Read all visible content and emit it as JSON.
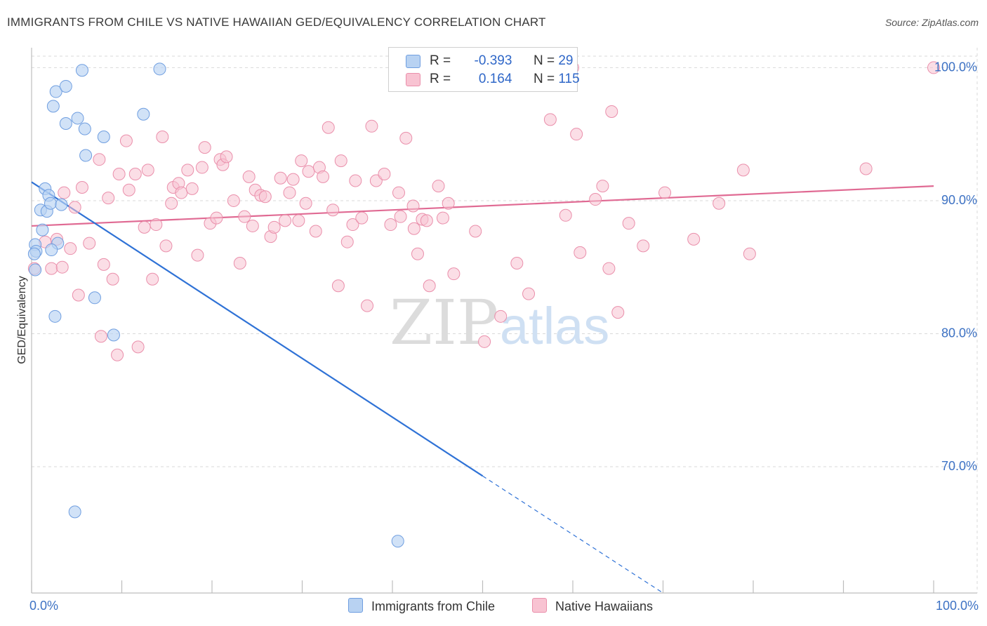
{
  "title": "IMMIGRANTS FROM CHILE VS NATIVE HAWAIIAN GED/EQUIVALENCY CORRELATION CHART",
  "source": "Source: ZipAtlas.com",
  "watermark": {
    "zip": "ZIP",
    "atlas": "atlas"
  },
  "colors": {
    "blue_fill": "#b8d2f2",
    "blue_stroke": "#6f9ee0",
    "blue_line": "#2f72d6",
    "pink_fill": "#f8c3d2",
    "pink_stroke": "#ea8fab",
    "pink_line": "#e06a93",
    "axis_label": "#3d72c4",
    "grid": "#d9d9d9"
  },
  "legend": {
    "rows": [
      {
        "r_label": "R =",
        "r_value": "-0.393",
        "n_label": "N =",
        "n_value": "29"
      },
      {
        "r_label": "R =",
        "r_value": "0.164",
        "n_label": "N =",
        "n_value": "115"
      }
    ]
  },
  "chart_data": {
    "type": "scatter",
    "xlabel": "",
    "ylabel": "GED/Equivalency",
    "xlim": [
      0,
      100
    ],
    "ylim": [
      60.5,
      101.5
    ],
    "x_tick_labels": [
      "0.0%",
      "100.0%"
    ],
    "y_ticks": [
      70,
      80,
      90,
      100
    ],
    "y_tick_labels": [
      "70.0%",
      "80.0%",
      "90.0%",
      "100.0%"
    ],
    "series": [
      {
        "name": "Immigrants from Chile",
        "color": "blue",
        "trend": {
          "x0": 0,
          "y0": 91.4,
          "x1": 50,
          "y1": 69.3,
          "dashed_to_x": 70,
          "dashed_to_y": 60.5
        },
        "points": [
          [
            0.4,
            86.7
          ],
          [
            0.5,
            86.2
          ],
          [
            0.4,
            84.8
          ],
          [
            0.3,
            86.0
          ],
          [
            1.2,
            87.8
          ],
          [
            1.0,
            89.3
          ],
          [
            1.7,
            89.2
          ],
          [
            1.5,
            90.9
          ],
          [
            1.9,
            90.4
          ],
          [
            2.1,
            89.8
          ],
          [
            3.3,
            89.7
          ],
          [
            2.9,
            86.8
          ],
          [
            2.2,
            86.3
          ],
          [
            2.6,
            81.3
          ],
          [
            2.4,
            97.1
          ],
          [
            2.7,
            98.2
          ],
          [
            3.8,
            98.6
          ],
          [
            5.6,
            99.8
          ],
          [
            14.2,
            99.9
          ],
          [
            3.8,
            95.8
          ],
          [
            5.1,
            96.2
          ],
          [
            5.9,
            95.4
          ],
          [
            6.0,
            93.4
          ],
          [
            8.0,
            94.8
          ],
          [
            12.4,
            96.5
          ],
          [
            7.0,
            82.7
          ],
          [
            9.1,
            79.9
          ],
          [
            4.8,
            66.6
          ],
          [
            40.6,
            64.4
          ]
        ]
      },
      {
        "name": "Native Hawaiians",
        "color": "pink",
        "trend": {
          "x0": 0,
          "y0": 88.1,
          "x1": 100,
          "y1": 91.1
        },
        "points": [
          [
            0.3,
            84.9
          ],
          [
            1.5,
            86.9
          ],
          [
            2.2,
            84.9
          ],
          [
            2.8,
            87.1
          ],
          [
            3.4,
            85.0
          ],
          [
            3.6,
            90.6
          ],
          [
            4.3,
            86.4
          ],
          [
            4.8,
            89.5
          ],
          [
            5.2,
            82.9
          ],
          [
            5.6,
            91.0
          ],
          [
            6.4,
            86.8
          ],
          [
            7.5,
            93.1
          ],
          [
            7.7,
            79.8
          ],
          [
            8.0,
            85.2
          ],
          [
            8.5,
            90.2
          ],
          [
            9.0,
            84.1
          ],
          [
            9.5,
            78.4
          ],
          [
            9.7,
            92.0
          ],
          [
            10.5,
            94.5
          ],
          [
            10.8,
            90.8
          ],
          [
            11.5,
            92.0
          ],
          [
            11.8,
            79.0
          ],
          [
            12.5,
            88.0
          ],
          [
            12.9,
            92.3
          ],
          [
            13.4,
            84.1
          ],
          [
            13.8,
            88.2
          ],
          [
            14.5,
            94.8
          ],
          [
            14.9,
            86.6
          ],
          [
            15.5,
            89.8
          ],
          [
            15.7,
            91.0
          ],
          [
            16.3,
            91.3
          ],
          [
            16.6,
            90.6
          ],
          [
            17.3,
            92.3
          ],
          [
            17.8,
            90.9
          ],
          [
            18.4,
            85.9
          ],
          [
            18.9,
            92.5
          ],
          [
            19.2,
            94.0
          ],
          [
            19.8,
            88.3
          ],
          [
            20.5,
            88.7
          ],
          [
            20.9,
            93.1
          ],
          [
            21.2,
            92.7
          ],
          [
            21.6,
            93.3
          ],
          [
            22.4,
            90.0
          ],
          [
            23.1,
            85.3
          ],
          [
            23.6,
            88.8
          ],
          [
            24.1,
            91.8
          ],
          [
            24.5,
            88.1
          ],
          [
            24.8,
            90.8
          ],
          [
            25.4,
            90.4
          ],
          [
            25.9,
            90.3
          ],
          [
            26.5,
            87.3
          ],
          [
            26.9,
            88.0
          ],
          [
            27.6,
            91.7
          ],
          [
            28.1,
            88.5
          ],
          [
            28.6,
            90.6
          ],
          [
            29.0,
            91.6
          ],
          [
            29.6,
            88.5
          ],
          [
            29.9,
            93.0
          ],
          [
            30.4,
            89.8
          ],
          [
            30.7,
            92.2
          ],
          [
            31.5,
            87.7
          ],
          [
            31.9,
            92.5
          ],
          [
            32.3,
            91.8
          ],
          [
            32.9,
            95.5
          ],
          [
            33.4,
            89.3
          ],
          [
            34.0,
            83.6
          ],
          [
            34.3,
            93.0
          ],
          [
            35.0,
            86.9
          ],
          [
            35.6,
            88.2
          ],
          [
            35.9,
            91.5
          ],
          [
            36.6,
            88.7
          ],
          [
            37.2,
            82.1
          ],
          [
            37.7,
            95.6
          ],
          [
            38.2,
            91.5
          ],
          [
            39.1,
            92.0
          ],
          [
            39.8,
            88.2
          ],
          [
            40.7,
            90.6
          ],
          [
            40.9,
            88.8
          ],
          [
            41.5,
            94.7
          ],
          [
            42.3,
            89.6
          ],
          [
            42.4,
            87.9
          ],
          [
            42.8,
            86.0
          ],
          [
            43.3,
            88.6
          ],
          [
            43.8,
            88.5
          ],
          [
            44.1,
            83.6
          ],
          [
            45.1,
            91.1
          ],
          [
            45.6,
            88.7
          ],
          [
            46.2,
            89.8
          ],
          [
            46.8,
            84.5
          ],
          [
            49.2,
            87.7
          ],
          [
            50.2,
            79.4
          ],
          [
            52.0,
            81.3
          ],
          [
            53.8,
            85.3
          ],
          [
            55.1,
            83.0
          ],
          [
            57.5,
            96.1
          ],
          [
            59.2,
            88.9
          ],
          [
            60.0,
            100.0
          ],
          [
            60.4,
            95.0
          ],
          [
            60.8,
            86.1
          ],
          [
            62.5,
            90.1
          ],
          [
            63.3,
            91.1
          ],
          [
            64.0,
            84.9
          ],
          [
            64.3,
            96.7
          ],
          [
            65.0,
            81.6
          ],
          [
            66.2,
            88.3
          ],
          [
            67.8,
            86.6
          ],
          [
            70.2,
            90.6
          ],
          [
            73.4,
            87.1
          ],
          [
            76.2,
            89.8
          ],
          [
            78.9,
            92.3
          ],
          [
            79.6,
            86.0
          ],
          [
            92.5,
            92.4
          ],
          [
            100.0,
            100.0
          ]
        ]
      }
    ]
  },
  "bottom_legend": {
    "series1": "Immigrants from Chile",
    "series2": "Native Hawaiians"
  }
}
